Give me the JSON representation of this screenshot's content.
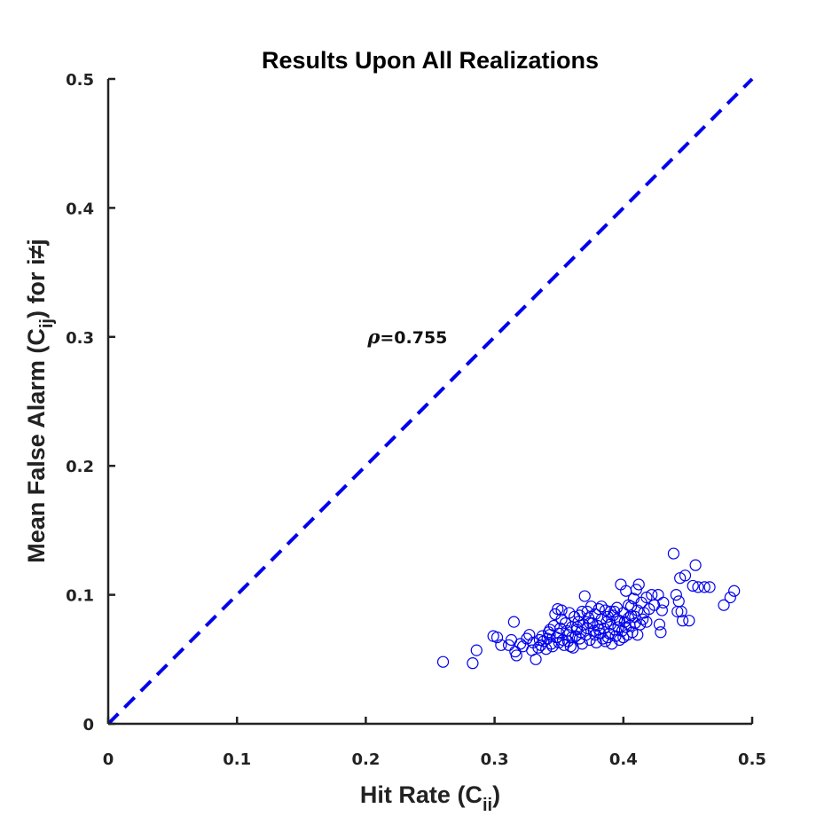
{
  "chart_data": {
    "type": "scatter",
    "title": "Results Upon All Realizations",
    "xlabel": "Hit Rate (C",
    "xlabel_sub": "ii",
    "xlabel_end": ")",
    "ylabel": "Mean False Alarm (C",
    "ylabel_sub": "ij",
    "ylabel_end": ") for i≠j",
    "xlim": [
      0,
      0.5
    ],
    "ylim": [
      0,
      0.5
    ],
    "xticks": [
      "0",
      "0.1",
      "0.2",
      "0.3",
      "0.4",
      "0.5"
    ],
    "yticks": [
      "0",
      "0.1",
      "0.2",
      "0.3",
      "0.4",
      "0.5"
    ],
    "xtick_values": [
      0,
      0.1,
      0.2,
      0.3,
      0.4,
      0.5
    ],
    "ytick_values": [
      0,
      0.1,
      0.2,
      0.3,
      0.4,
      0.5
    ],
    "annotation": {
      "symbol": "ρ",
      "text": "=0.755",
      "x": 0.2,
      "y": 0.295
    },
    "reference_line": {
      "style": "dashed",
      "color": "#0000ee",
      "from": [
        0,
        0
      ],
      "to": [
        0.5,
        0.5
      ]
    },
    "marker": {
      "shape": "open-circle",
      "color": "#0000ee"
    },
    "grid": false,
    "points": [
      [
        0.26,
        0.048
      ],
      [
        0.283,
        0.047
      ],
      [
        0.286,
        0.057
      ],
      [
        0.299,
        0.068
      ],
      [
        0.302,
        0.067
      ],
      [
        0.305,
        0.061
      ],
      [
        0.311,
        0.061
      ],
      [
        0.313,
        0.065
      ],
      [
        0.315,
        0.079
      ],
      [
        0.316,
        0.056
      ],
      [
        0.317,
        0.053
      ],
      [
        0.32,
        0.062
      ],
      [
        0.322,
        0.06
      ],
      [
        0.325,
        0.066
      ],
      [
        0.327,
        0.069
      ],
      [
        0.329,
        0.057
      ],
      [
        0.33,
        0.063
      ],
      [
        0.332,
        0.05
      ],
      [
        0.334,
        0.059
      ],
      [
        0.335,
        0.065
      ],
      [
        0.336,
        0.061
      ],
      [
        0.337,
        0.068
      ],
      [
        0.338,
        0.064
      ],
      [
        0.34,
        0.058
      ],
      [
        0.341,
        0.066
      ],
      [
        0.342,
        0.071
      ],
      [
        0.343,
        0.073
      ],
      [
        0.344,
        0.062
      ],
      [
        0.345,
        0.06
      ],
      [
        0.346,
        0.076
      ],
      [
        0.347,
        0.085
      ],
      [
        0.348,
        0.067
      ],
      [
        0.349,
        0.089
      ],
      [
        0.35,
        0.07
      ],
      [
        0.351,
        0.074
      ],
      [
        0.352,
        0.088
      ],
      [
        0.353,
        0.065
      ],
      [
        0.354,
        0.061
      ],
      [
        0.355,
        0.078
      ],
      [
        0.356,
        0.072
      ],
      [
        0.357,
        0.064
      ],
      [
        0.358,
        0.086
      ],
      [
        0.359,
        0.06
      ],
      [
        0.36,
        0.075
      ],
      [
        0.361,
        0.059
      ],
      [
        0.362,
        0.083
      ],
      [
        0.363,
        0.068
      ],
      [
        0.364,
        0.073
      ],
      [
        0.365,
        0.079
      ],
      [
        0.366,
        0.066
      ],
      [
        0.367,
        0.071
      ],
      [
        0.368,
        0.087
      ],
      [
        0.369,
        0.077
      ],
      [
        0.37,
        0.099
      ],
      [
        0.371,
        0.069
      ],
      [
        0.372,
        0.074
      ],
      [
        0.373,
        0.082
      ],
      [
        0.374,
        0.065
      ],
      [
        0.375,
        0.091
      ],
      [
        0.376,
        0.078
      ],
      [
        0.377,
        0.072
      ],
      [
        0.378,
        0.085
      ],
      [
        0.379,
        0.063
      ],
      [
        0.38,
        0.076
      ],
      [
        0.381,
        0.089
      ],
      [
        0.382,
        0.07
      ],
      [
        0.383,
        0.081
      ],
      [
        0.384,
        0.066
      ],
      [
        0.385,
        0.074
      ],
      [
        0.386,
        0.088
      ],
      [
        0.387,
        0.079
      ],
      [
        0.388,
        0.083
      ],
      [
        0.389,
        0.07
      ],
      [
        0.39,
        0.077
      ],
      [
        0.391,
        0.062
      ],
      [
        0.392,
        0.084
      ],
      [
        0.393,
        0.073
      ],
      [
        0.394,
        0.068
      ],
      [
        0.395,
        0.09
      ],
      [
        0.396,
        0.075
      ],
      [
        0.397,
        0.08
      ],
      [
        0.398,
        0.108
      ],
      [
        0.399,
        0.072
      ],
      [
        0.4,
        0.086
      ],
      [
        0.401,
        0.079
      ],
      [
        0.402,
        0.103
      ],
      [
        0.403,
        0.069
      ],
      [
        0.404,
        0.092
      ],
      [
        0.405,
        0.076
      ],
      [
        0.406,
        0.084
      ],
      [
        0.407,
        0.071
      ],
      [
        0.408,
        0.097
      ],
      [
        0.409,
        0.083
      ],
      [
        0.41,
        0.104
      ],
      [
        0.411,
        0.088
      ],
      [
        0.412,
        0.108
      ],
      [
        0.413,
        0.077
      ],
      [
        0.414,
        0.094
      ],
      [
        0.415,
        0.081
      ],
      [
        0.416,
        0.086
      ],
      [
        0.418,
        0.098
      ],
      [
        0.42,
        0.089
      ],
      [
        0.422,
        0.1
      ],
      [
        0.424,
        0.092
      ],
      [
        0.427,
        0.1
      ],
      [
        0.428,
        0.077
      ],
      [
        0.429,
        0.071
      ],
      [
        0.43,
        0.088
      ],
      [
        0.431,
        0.094
      ],
      [
        0.439,
        0.132
      ],
      [
        0.441,
        0.1
      ],
      [
        0.442,
        0.087
      ],
      [
        0.443,
        0.095
      ],
      [
        0.444,
        0.113
      ],
      [
        0.445,
        0.087
      ],
      [
        0.446,
        0.08
      ],
      [
        0.448,
        0.115
      ],
      [
        0.451,
        0.08
      ],
      [
        0.454,
        0.107
      ],
      [
        0.456,
        0.123
      ],
      [
        0.458,
        0.106
      ],
      [
        0.463,
        0.106
      ],
      [
        0.467,
        0.106
      ],
      [
        0.478,
        0.092
      ],
      [
        0.483,
        0.098
      ],
      [
        0.486,
        0.103
      ],
      [
        0.352,
        0.081
      ],
      [
        0.36,
        0.067
      ],
      [
        0.366,
        0.084
      ],
      [
        0.374,
        0.078
      ],
      [
        0.381,
        0.073
      ],
      [
        0.388,
        0.067
      ],
      [
        0.395,
        0.081
      ],
      [
        0.402,
        0.075
      ],
      [
        0.409,
        0.078
      ],
      [
        0.357,
        0.069
      ],
      [
        0.364,
        0.075
      ],
      [
        0.372,
        0.087
      ],
      [
        0.378,
        0.069
      ],
      [
        0.386,
        0.064
      ],
      [
        0.393,
        0.087
      ],
      [
        0.4,
        0.067
      ],
      [
        0.406,
        0.091
      ],
      [
        0.343,
        0.069
      ],
      [
        0.35,
        0.063
      ],
      [
        0.368,
        0.062
      ],
      [
        0.383,
        0.091
      ],
      [
        0.39,
        0.087
      ],
      [
        0.397,
        0.065
      ],
      [
        0.404,
        0.082
      ],
      [
        0.411,
        0.069
      ],
      [
        0.418,
        0.079
      ]
    ]
  }
}
